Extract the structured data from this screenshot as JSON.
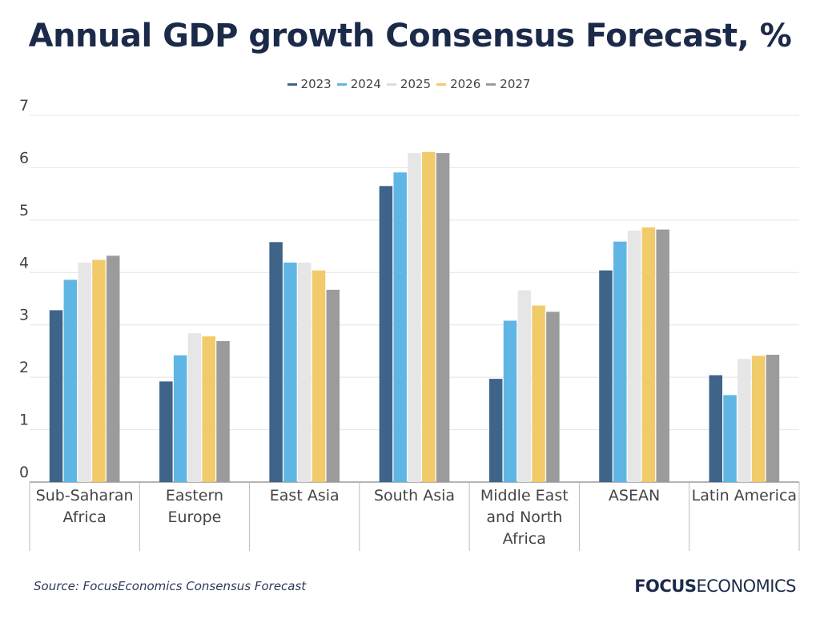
{
  "chart_data": {
    "type": "bar",
    "title": "Annual GDP growth Consensus Forecast, %",
    "categories": [
      [
        "Sub-Saharan",
        "Africa"
      ],
      [
        "Eastern",
        "Europe"
      ],
      [
        "East Asia"
      ],
      [
        "South Asia"
      ],
      [
        "Middle East",
        "and North",
        "Africa"
      ],
      [
        "ASEAN"
      ],
      [
        "Latin America"
      ]
    ],
    "series": [
      {
        "name": "2023",
        "color": "#3f6489",
        "values": [
          3.28,
          1.92,
          4.58,
          5.65,
          1.97,
          4.04,
          2.04
        ]
      },
      {
        "name": "2024",
        "color": "#5fb6e4",
        "values": [
          3.86,
          2.42,
          4.19,
          5.91,
          3.08,
          4.59,
          1.66
        ]
      },
      {
        "name": "2025",
        "color": "#e6e6e6",
        "values": [
          4.19,
          2.84,
          4.19,
          6.28,
          3.66,
          4.8,
          2.35
        ]
      },
      {
        "name": "2026",
        "color": "#f1ca6a",
        "values": [
          4.24,
          2.78,
          4.04,
          6.3,
          3.37,
          4.86,
          2.41
        ]
      },
      {
        "name": "2027",
        "color": "#9b9b9b",
        "values": [
          4.32,
          2.69,
          3.67,
          6.28,
          3.25,
          4.82,
          2.43
        ]
      }
    ],
    "yticks": [
      "0",
      "1",
      "2",
      "3",
      "4",
      "5",
      "6",
      "7"
    ],
    "ylim": [
      0,
      7
    ],
    "xlabel": "",
    "ylabel": "",
    "grid": true,
    "legend_position": "top-center"
  },
  "footer": {
    "source": "Source: FocusEconomics Consensus Forecast",
    "logo_bold": "FOCUS",
    "logo_light": "ECONOMICS"
  }
}
